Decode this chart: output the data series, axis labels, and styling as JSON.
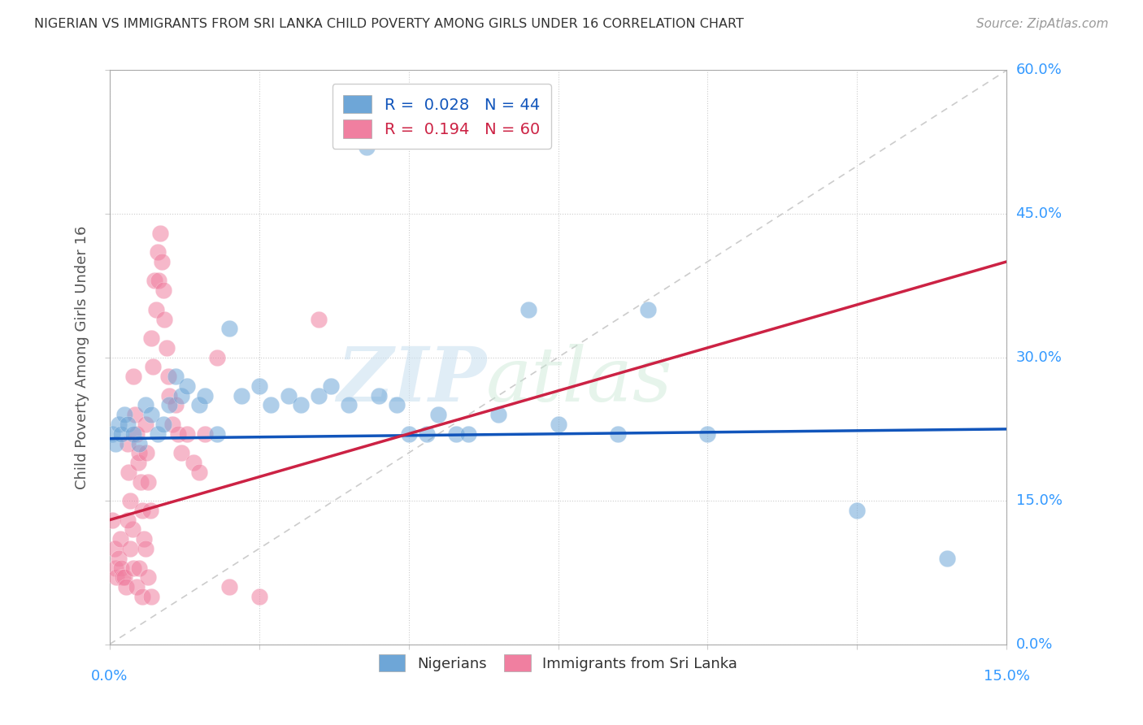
{
  "title": "NIGERIAN VS IMMIGRANTS FROM SRI LANKA CHILD POVERTY AMONG GIRLS UNDER 16 CORRELATION CHART",
  "source": "Source: ZipAtlas.com",
  "ylabel": "Child Poverty Among Girls Under 16",
  "ytick_values": [
    0,
    15,
    30,
    45,
    60
  ],
  "xlim": [
    0,
    15
  ],
  "ylim": [
    0,
    60
  ],
  "nigerians_x": [
    0.05,
    0.1,
    0.15,
    0.2,
    0.25,
    0.3,
    0.4,
    0.5,
    0.6,
    0.7,
    0.8,
    0.9,
    1.0,
    1.1,
    1.2,
    1.3,
    1.5,
    1.6,
    1.8,
    2.0,
    2.2,
    2.5,
    2.7,
    3.0,
    3.2,
    3.5,
    3.7,
    4.0,
    4.3,
    4.5,
    4.8,
    5.0,
    5.3,
    5.5,
    5.8,
    6.0,
    6.5,
    7.0,
    7.5,
    8.5,
    9.0,
    10.0,
    12.5,
    14.0
  ],
  "nigerians_y": [
    22,
    21,
    23,
    22,
    24,
    23,
    22,
    21,
    25,
    24,
    22,
    23,
    25,
    28,
    26,
    27,
    25,
    26,
    22,
    33,
    26,
    27,
    25,
    26,
    25,
    26,
    27,
    25,
    52,
    26,
    25,
    22,
    22,
    24,
    22,
    22,
    24,
    35,
    23,
    22,
    35,
    22,
    14,
    9
  ],
  "sri_lanka_x": [
    0.05,
    0.08,
    0.1,
    0.12,
    0.15,
    0.18,
    0.2,
    0.22,
    0.25,
    0.28,
    0.3,
    0.32,
    0.35,
    0.38,
    0.4,
    0.42,
    0.45,
    0.48,
    0.5,
    0.52,
    0.55,
    0.58,
    0.6,
    0.62,
    0.65,
    0.68,
    0.7,
    0.72,
    0.75,
    0.78,
    0.8,
    0.82,
    0.85,
    0.88,
    0.9,
    0.92,
    0.95,
    0.98,
    1.0,
    1.05,
    1.1,
    1.15,
    1.2,
    1.3,
    1.4,
    1.5,
    1.6,
    1.8,
    2.0,
    2.5,
    0.3,
    0.35,
    0.4,
    0.45,
    0.5,
    0.55,
    0.6,
    0.65,
    0.7,
    3.5
  ],
  "sri_lanka_y": [
    13,
    10,
    8,
    7,
    9,
    11,
    8,
    7,
    7,
    6,
    21,
    18,
    15,
    12,
    28,
    24,
    22,
    19,
    20,
    17,
    14,
    11,
    23,
    20,
    17,
    14,
    32,
    29,
    38,
    35,
    41,
    38,
    43,
    40,
    37,
    34,
    31,
    28,
    26,
    23,
    25,
    22,
    20,
    22,
    19,
    18,
    22,
    30,
    6,
    5,
    13,
    10,
    8,
    6,
    8,
    5,
    10,
    7,
    5,
    34
  ],
  "blue_color": "#6ea6d7",
  "pink_color": "#f07fa0",
  "blue_line_color": "#1155bb",
  "pink_line_color": "#cc2244",
  "diagonal_color": "#cccccc",
  "blue_line_y0": 21.5,
  "blue_line_y1": 22.5,
  "pink_line_y0": 13.0,
  "pink_line_y1": 22.0,
  "pink_line_x0": 0.0,
  "pink_line_x1": 5.0,
  "watermark_line1": "ZIP",
  "watermark_line2": "atlas",
  "background_color": "#ffffff"
}
